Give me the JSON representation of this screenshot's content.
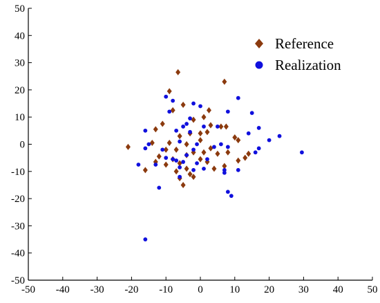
{
  "chart_data": {
    "type": "scatter",
    "title": "",
    "xlabel": "",
    "ylabel": "",
    "xlim": [
      -50,
      50
    ],
    "ylim": [
      -50,
      50
    ],
    "x_ticks": [
      -50,
      -40,
      -30,
      -20,
      -10,
      0,
      10,
      20,
      30,
      40,
      50
    ],
    "y_ticks": [
      -50,
      -40,
      -30,
      -20,
      -10,
      0,
      10,
      20,
      30,
      40,
      50
    ],
    "grid": false,
    "legend_position": "top-right",
    "series": [
      {
        "name": "Reference",
        "marker": "diamond",
        "color": "#8B3A0E",
        "points": [
          [
            -6.5,
            26.5
          ],
          [
            7,
            23
          ],
          [
            -9,
            19.5
          ],
          [
            -8,
            12.5
          ],
          [
            2.5,
            12.5
          ],
          [
            -11,
            7.5
          ],
          [
            -13,
            5.5
          ],
          [
            -5,
            14.5
          ],
          [
            -2,
            9
          ],
          [
            1,
            10
          ],
          [
            3,
            7
          ],
          [
            6,
            6.5
          ],
          [
            7.5,
            6.5
          ],
          [
            -3,
            4
          ],
          [
            0,
            4
          ],
          [
            2,
            4.5
          ],
          [
            -6,
            3
          ],
          [
            -14,
            0.5
          ],
          [
            -9,
            0.5
          ],
          [
            -4,
            0
          ],
          [
            0,
            1.5
          ],
          [
            3,
            -1.5
          ],
          [
            10,
            2.5
          ],
          [
            11,
            1.5
          ],
          [
            -21,
            -1
          ],
          [
            -10,
            -2
          ],
          [
            -7,
            -2
          ],
          [
            -2,
            -3
          ],
          [
            1,
            -3
          ],
          [
            5,
            -3.5
          ],
          [
            8,
            -3
          ],
          [
            -12,
            -4.5
          ],
          [
            -8,
            -5.5
          ],
          [
            -4,
            -4
          ],
          [
            0,
            -5.5
          ],
          [
            13,
            -5
          ],
          [
            14,
            -3.5
          ],
          [
            -13,
            -6.5
          ],
          [
            -10,
            -7.5
          ],
          [
            -6,
            -7
          ],
          [
            2,
            -6.5
          ],
          [
            11,
            -6
          ],
          [
            -16,
            -9.5
          ],
          [
            -7,
            -10
          ],
          [
            -4,
            -9
          ],
          [
            -3,
            -11
          ],
          [
            4,
            -9
          ],
          [
            7,
            -8
          ],
          [
            -6,
            -12.5
          ],
          [
            -2,
            -12
          ],
          [
            -5,
            -15
          ]
        ]
      },
      {
        "name": "Realization",
        "marker": "circle",
        "color": "#1010DD",
        "points": [
          [
            11,
            17
          ],
          [
            -10,
            17.5
          ],
          [
            -8,
            16
          ],
          [
            -2,
            15
          ],
          [
            0,
            14
          ],
          [
            15,
            11.5
          ],
          [
            -9,
            12
          ],
          [
            -3,
            9.5
          ],
          [
            8,
            12
          ],
          [
            -4,
            7.5
          ],
          [
            -5,
            6.5
          ],
          [
            1,
            6.5
          ],
          [
            5,
            6.5
          ],
          [
            -16,
            5
          ],
          [
            -7,
            5
          ],
          [
            17,
            6
          ],
          [
            14,
            4
          ],
          [
            23,
            3
          ],
          [
            -3,
            4.5
          ],
          [
            20,
            1.5
          ],
          [
            -15,
            0
          ],
          [
            -6,
            1
          ],
          [
            -1,
            0
          ],
          [
            6,
            0
          ],
          [
            17,
            -1.5
          ],
          [
            -16,
            -1.5
          ],
          [
            -11,
            -2
          ],
          [
            -2,
            -2
          ],
          [
            8,
            -1
          ],
          [
            29.5,
            -3
          ],
          [
            16,
            -3
          ],
          [
            4,
            -1
          ],
          [
            -4,
            -4
          ],
          [
            -10,
            -5
          ],
          [
            -8,
            -5.5
          ],
          [
            -7,
            -6
          ],
          [
            -5,
            -6.5
          ],
          [
            -1,
            -7
          ],
          [
            2,
            -5.5
          ],
          [
            -13,
            -7.5
          ],
          [
            -6,
            -8.5
          ],
          [
            -18,
            -7.5
          ],
          [
            1,
            -9
          ],
          [
            7,
            -9.5
          ],
          [
            11,
            -9.5
          ],
          [
            -2,
            -9.5
          ],
          [
            -6,
            -12
          ],
          [
            7,
            -10.5
          ],
          [
            8,
            -17.5
          ],
          [
            9,
            -19
          ],
          [
            -12,
            -16
          ],
          [
            -16,
            -35
          ]
        ]
      }
    ]
  }
}
